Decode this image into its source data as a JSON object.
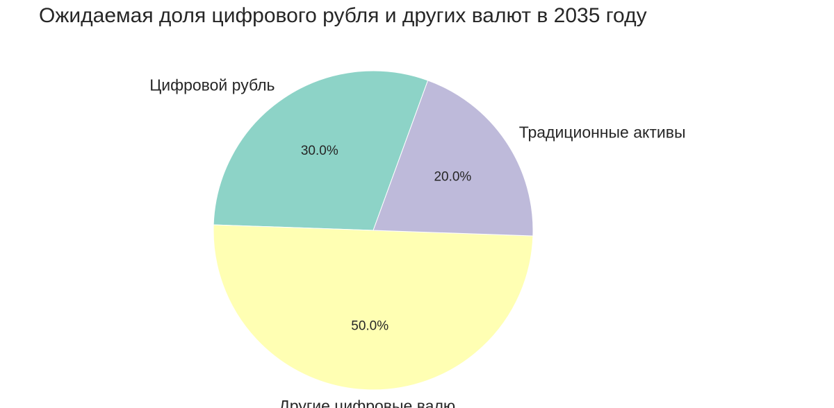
{
  "chart_data": {
    "type": "pie",
    "title": "Ожидаемая доля цифрового рубля и других валют в 2035 году",
    "start_angle_deg": 70,
    "direction": "counterclockwise",
    "slices": [
      {
        "label": "Цифровой рубль",
        "value": 30.0,
        "pct_text": "30.0%",
        "color": "#8dd3c7"
      },
      {
        "label": "Другие цифровые валю",
        "value": 50.0,
        "pct_text": "50.0%",
        "color": "#ffffb3"
      },
      {
        "label": "Традиционные активы",
        "value": 20.0,
        "pct_text": "20.0%",
        "color": "#bebada"
      }
    ]
  }
}
